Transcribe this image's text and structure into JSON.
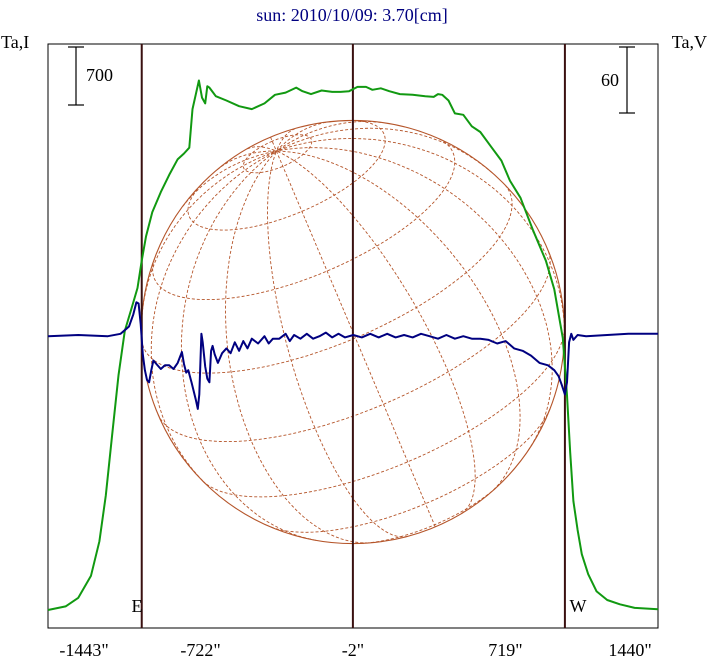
{
  "chart_data": {
    "type": "line",
    "title": "sun: 2010/10/09: 3.70[cm]",
    "left_axis_label": "Ta,I",
    "right_axis_label": "Ta,V",
    "left_scale_label": "700",
    "right_scale_label": "60",
    "x_ticks": [
      {
        "value": -1443,
        "label": "-1443\""
      },
      {
        "value": -722,
        "label": "-722\""
      },
      {
        "value": -2,
        "label": "-2\""
      },
      {
        "value": 719,
        "label": "719\""
      },
      {
        "value": 1440,
        "label": "1440\""
      }
    ],
    "xlim": [
      -1443,
      1440
    ],
    "ylim_I": [
      0,
      3850
    ],
    "ylim_V": [
      -150,
      190
    ],
    "limb_lines_x": [
      -1000,
      -2,
      1000
    ],
    "limb_labels": {
      "east": "E",
      "west": "W"
    },
    "solar_disk": {
      "center_x": -2,
      "radius": 1000
    },
    "series": [
      {
        "axis": "I",
        "color": "#119911",
        "points": [
          [
            -1443,
            0
          ],
          [
            -1360,
            25
          ],
          [
            -1300,
            85
          ],
          [
            -1240,
            240
          ],
          [
            -1200,
            480
          ],
          [
            -1170,
            800
          ],
          [
            -1140,
            1220
          ],
          [
            -1110,
            1640
          ],
          [
            -1080,
            1950
          ],
          [
            -1050,
            2100
          ],
          [
            -1020,
            2250
          ],
          [
            -1000,
            2440
          ],
          [
            -980,
            2610
          ],
          [
            -950,
            2780
          ],
          [
            -910,
            2920
          ],
          [
            -870,
            3040
          ],
          [
            -830,
            3150
          ],
          [
            -800,
            3190
          ],
          [
            -775,
            3230
          ],
          [
            -760,
            3500
          ],
          [
            -745,
            3600
          ],
          [
            -730,
            3700
          ],
          [
            -715,
            3580
          ],
          [
            -700,
            3540
          ],
          [
            -690,
            3660
          ],
          [
            -680,
            3650
          ],
          [
            -665,
            3620
          ],
          [
            -650,
            3590
          ],
          [
            -600,
            3560
          ],
          [
            -540,
            3520
          ],
          [
            -480,
            3500
          ],
          [
            -420,
            3540
          ],
          [
            -370,
            3600
          ],
          [
            -320,
            3615
          ],
          [
            -270,
            3650
          ],
          [
            -240,
            3625
          ],
          [
            -200,
            3605
          ],
          [
            -150,
            3630
          ],
          [
            -100,
            3620
          ],
          [
            -60,
            3620
          ],
          [
            -20,
            3625
          ],
          [
            20,
            3655
          ],
          [
            60,
            3655
          ],
          [
            90,
            3635
          ],
          [
            130,
            3645
          ],
          [
            170,
            3625
          ],
          [
            220,
            3605
          ],
          [
            280,
            3600
          ],
          [
            340,
            3590
          ],
          [
            380,
            3585
          ],
          [
            400,
            3605
          ],
          [
            420,
            3600
          ],
          [
            450,
            3560
          ],
          [
            480,
            3470
          ],
          [
            520,
            3460
          ],
          [
            560,
            3380
          ],
          [
            600,
            3340
          ],
          [
            650,
            3240
          ],
          [
            700,
            3140
          ],
          [
            740,
            3000
          ],
          [
            790,
            2880
          ],
          [
            850,
            2650
          ],
          [
            910,
            2440
          ],
          [
            950,
            2240
          ],
          [
            990,
            1900
          ],
          [
            1010,
            1500
          ],
          [
            1025,
            1100
          ],
          [
            1040,
            760
          ],
          [
            1060,
            560
          ],
          [
            1080,
            390
          ],
          [
            1110,
            250
          ],
          [
            1150,
            130
          ],
          [
            1200,
            70
          ],
          [
            1260,
            40
          ],
          [
            1330,
            15
          ],
          [
            1440,
            5
          ]
        ]
      },
      {
        "axis": "V",
        "color": "#000080",
        "points": [
          [
            -1443,
            0
          ],
          [
            -1300,
            1
          ],
          [
            -1160,
            0
          ],
          [
            -1100,
            2
          ],
          [
            -1060,
            8
          ],
          [
            -1040,
            18
          ],
          [
            -1025,
            28
          ],
          [
            -1015,
            27
          ],
          [
            -1005,
            10
          ],
          [
            -995,
            -15
          ],
          [
            -985,
            -28
          ],
          [
            -975,
            -36
          ],
          [
            -965,
            -38
          ],
          [
            -955,
            -28
          ],
          [
            -945,
            -20
          ],
          [
            -930,
            -23
          ],
          [
            -910,
            -27
          ],
          [
            -890,
            -24
          ],
          [
            -870,
            -24
          ],
          [
            -850,
            -27
          ],
          [
            -830,
            -22
          ],
          [
            -810,
            -13
          ],
          [
            -800,
            -23
          ],
          [
            -790,
            -30
          ],
          [
            -780,
            -28
          ],
          [
            -765,
            -38
          ],
          [
            -755,
            -45
          ],
          [
            -745,
            -52
          ],
          [
            -735,
            -60
          ],
          [
            -728,
            -48
          ],
          [
            -718,
            2
          ],
          [
            -712,
            -5
          ],
          [
            -700,
            -25
          ],
          [
            -690,
            -35
          ],
          [
            -680,
            -38
          ],
          [
            -672,
            -12
          ],
          [
            -665,
            -8
          ],
          [
            -655,
            -15
          ],
          [
            -640,
            -22
          ],
          [
            -620,
            -14
          ],
          [
            -600,
            -10
          ],
          [
            -580,
            -14
          ],
          [
            -560,
            -5
          ],
          [
            -540,
            -12
          ],
          [
            -520,
            -4
          ],
          [
            -500,
            -10
          ],
          [
            -480,
            -2
          ],
          [
            -450,
            -6
          ],
          [
            -420,
            0
          ],
          [
            -400,
            -6
          ],
          [
            -380,
            -2
          ],
          [
            -350,
            -2
          ],
          [
            -320,
            2
          ],
          [
            -300,
            -4
          ],
          [
            -280,
            1
          ],
          [
            -250,
            -2
          ],
          [
            -220,
            2
          ],
          [
            -190,
            -2
          ],
          [
            -160,
            0
          ],
          [
            -130,
            3
          ],
          [
            -100,
            -1
          ],
          [
            -70,
            2
          ],
          [
            -40,
            -1
          ],
          [
            0,
            1
          ],
          [
            40,
            -1
          ],
          [
            80,
            2
          ],
          [
            120,
            -1
          ],
          [
            160,
            2
          ],
          [
            200,
            -1
          ],
          [
            240,
            1
          ],
          [
            280,
            -1
          ],
          [
            320,
            2
          ],
          [
            360,
            0
          ],
          [
            400,
            -2
          ],
          [
            440,
            1
          ],
          [
            480,
            -2
          ],
          [
            520,
            0
          ],
          [
            560,
            -2
          ],
          [
            600,
            -2
          ],
          [
            640,
            -3
          ],
          [
            680,
            -6
          ],
          [
            720,
            -4
          ],
          [
            760,
            -10
          ],
          [
            800,
            -12
          ],
          [
            840,
            -16
          ],
          [
            880,
            -22
          ],
          [
            920,
            -24
          ],
          [
            950,
            -28
          ],
          [
            970,
            -33
          ],
          [
            985,
            -40
          ],
          [
            1000,
            -48
          ],
          [
            1010,
            -38
          ],
          [
            1020,
            -5
          ],
          [
            1030,
            2
          ],
          [
            1040,
            -3
          ],
          [
            1060,
            1
          ],
          [
            1100,
            0
          ],
          [
            1200,
            1
          ],
          [
            1300,
            2
          ],
          [
            1440,
            2
          ]
        ]
      }
    ]
  }
}
